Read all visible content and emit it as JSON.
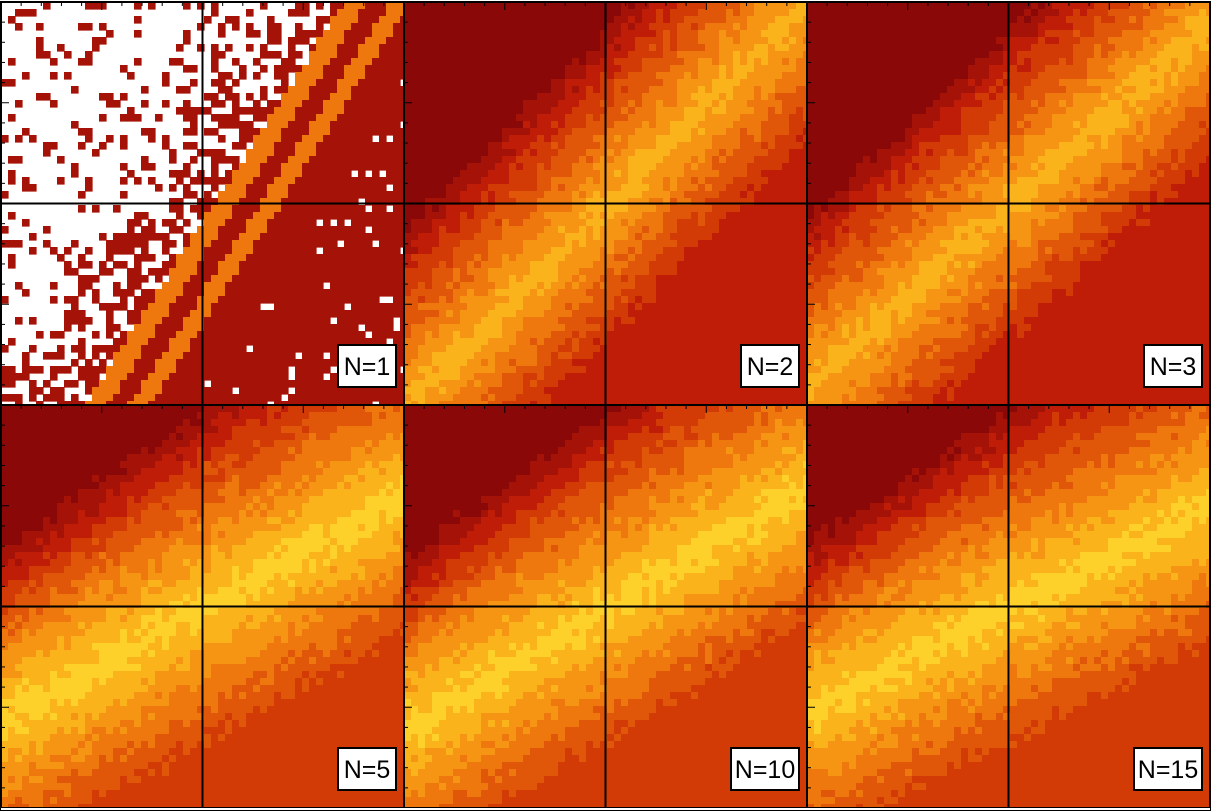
{
  "chart_data": {
    "type": "heatmap",
    "layout": {
      "rows": 2,
      "cols": 3
    },
    "grid": true,
    "colors": {
      "scale": [
        "#8a0808",
        "#a51208",
        "#bf1d07",
        "#d23a06",
        "#e0570a",
        "#ee780d",
        "#f69514",
        "#fbb31c",
        "#fdd12a"
      ],
      "background": "#ffffff",
      "contour_line": "#3a1a00"
    },
    "panels": [
      {
        "label": "N=1",
        "white_background": true,
        "ridges": [
          {
            "center_offset": -0.15,
            "slope": 1.55,
            "level": 5,
            "width": 0.045
          },
          {
            "center_offset": 0.85,
            "slope": 1.55,
            "level": 5,
            "width": 0.04
          }
        ],
        "red_level": 1
      },
      {
        "label": "N=2",
        "white_background": false,
        "peak_level": 7,
        "slope": 1.0,
        "base_level": 2,
        "corner_level": 0
      },
      {
        "label": "N=3",
        "white_background": false,
        "peak_level": 7,
        "slope": 0.9,
        "base_level": 2,
        "corner_level": 0
      },
      {
        "label": "N=5",
        "white_background": false,
        "peak_level": 8,
        "slope": 0.55,
        "base_level": 3,
        "corner_level": 0
      },
      {
        "label": "N=10",
        "white_background": false,
        "peak_level": 8,
        "slope": 0.6,
        "base_level": 3,
        "corner_level": 0
      },
      {
        "label": "N=15",
        "white_background": false,
        "peak_level": 8,
        "slope": 0.5,
        "base_level": 3,
        "corner_level": 0
      }
    ]
  }
}
